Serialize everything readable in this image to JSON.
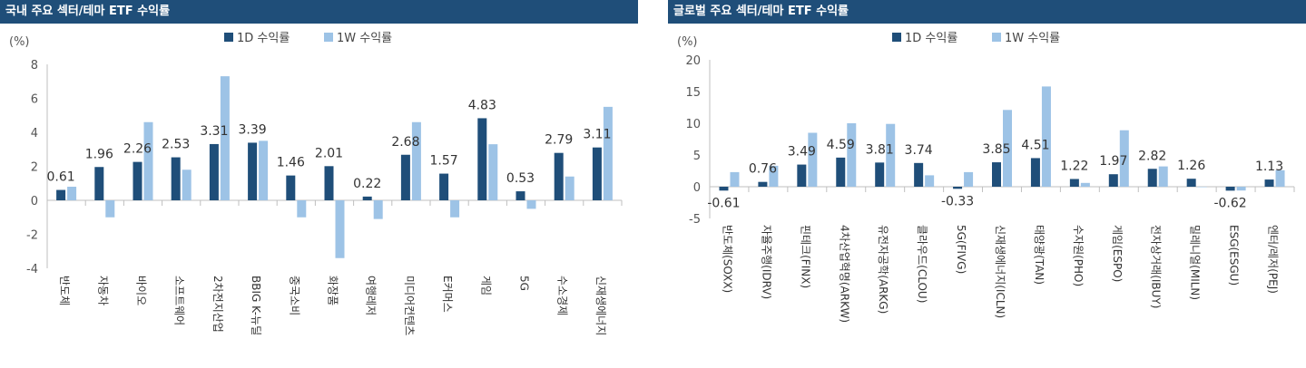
{
  "colors": {
    "title_bg": "#1f4e79",
    "bar_1d": "#1f4e79",
    "bar_1w": "#9dc3e6",
    "axis": "#bfbfbf"
  },
  "chart_data": [
    {
      "type": "bar",
      "title": "국내 주요 섹터/테마 ETF 수익률",
      "unit": "(%)",
      "legend": [
        "1D 수익률",
        "1W 수익률"
      ],
      "legend_position": "top-center",
      "ylim": [
        -4,
        8
      ],
      "yticks": [
        "8",
        "6",
        "4",
        "2",
        "0",
        "-2",
        "-4"
      ],
      "categories": [
        "반도체",
        "자동차",
        "바이오",
        "소프트웨어",
        "2차전지산업",
        "BBIG K-뉴딜",
        "중국소비",
        "화장품",
        "여행레저",
        "미디어컨텐츠",
        "E커머스",
        "게임",
        "5G",
        "수소경제",
        "신재생에너지"
      ],
      "series": [
        {
          "name": "1D 수익률",
          "values": [
            0.61,
            1.96,
            2.26,
            2.53,
            3.31,
            3.39,
            1.46,
            2.01,
            0.22,
            2.68,
            1.57,
            4.83,
            0.53,
            2.79,
            3.11
          ]
        },
        {
          "name": "1W 수익률",
          "values": [
            0.8,
            -1.0,
            4.6,
            1.8,
            7.3,
            3.5,
            -1.0,
            -3.4,
            -1.1,
            4.6,
            -1.0,
            3.3,
            -0.5,
            1.4,
            5.5
          ]
        }
      ],
      "data_labels": [
        "0.61",
        "1.96",
        "2.26",
        "2.53",
        "3.31",
        "3.39",
        "1.46",
        "2.01",
        "0.22",
        "2.68",
        "1.57",
        "4.83",
        "0.53",
        "2.79",
        "3.11"
      ]
    },
    {
      "type": "bar",
      "title": "글로벌 주요 섹터/테마 ETF 수익률",
      "unit": "(%)",
      "legend": [
        "1D 수익률",
        "1W 수익률"
      ],
      "legend_position": "top-center",
      "ylim": [
        -5,
        20
      ],
      "yticks": [
        "20",
        "15",
        "10",
        "5",
        "0",
        "-5"
      ],
      "categories": [
        "반도체(SOXX)",
        "자율주행(IDRV)",
        "핀테크(FINX)",
        "4차산업혁명(ARKW)",
        "유전자공학(ARKG)",
        "클라우드(CLOU)",
        "5G(FIVG)",
        "신재생에너지(ICLN)",
        "태양광(TAN)",
        "수자원(PHO)",
        "게임(ESPO)",
        "전자상거래(IBUY)",
        "밀레니얼(MILN)",
        "ESG(ESGU)",
        "엔터/레저(PEJ)"
      ],
      "series": [
        {
          "name": "1D 수익률",
          "values": [
            -0.61,
            0.76,
            3.49,
            4.59,
            3.81,
            3.74,
            -0.33,
            3.85,
            4.51,
            1.22,
            1.97,
            2.82,
            1.26,
            -0.62,
            1.13
          ]
        },
        {
          "name": "1W 수익률",
          "values": [
            2.3,
            3.3,
            8.5,
            10.0,
            9.9,
            1.8,
            2.3,
            12.1,
            15.8,
            0.6,
            8.9,
            3.2,
            0.0,
            -0.6,
            2.6
          ]
        }
      ],
      "data_labels": [
        "-0.61",
        "0.76",
        "3.49",
        "4.59",
        "3.81",
        "3.74",
        "-0.33",
        "3.85",
        "4.51",
        "1.22",
        "1.97",
        "2.82",
        "1.26",
        "-0.62",
        "1.13"
      ]
    }
  ]
}
